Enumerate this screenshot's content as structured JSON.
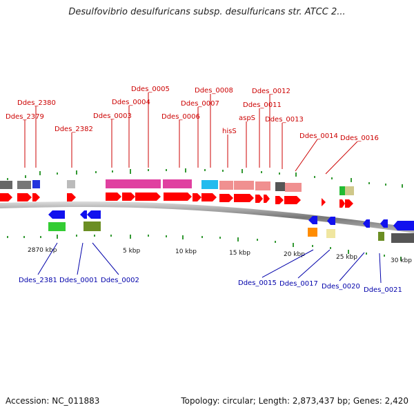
{
  "title": "Desulfovibrio desulfuricans subsp. desulfuricans str. ATCC 2...",
  "footer": {
    "accession": "Accession: NC_011883",
    "summary": "Topology: circular; Length: 2,873,437 bp; Genes: 2,420"
  },
  "colors": {
    "forward_gene": "#ff0000",
    "reverse_gene": "#0000ff",
    "forward_label": "#cc0000",
    "reverse_label": "#0000aa",
    "backbone": "#555555",
    "tick": "#339933"
  },
  "kbp_labels": [
    "2870 kbp",
    "5 kbp",
    "10 kbp",
    "15 kbp",
    "20 kbp",
    "25 kbp",
    "30 kbp"
  ],
  "forward_labels": [
    "Ddes_2380",
    "Ddes_2379",
    "Ddes_2382",
    "Ddes_0005",
    "Ddes_0004",
    "Ddes_0003",
    "Ddes_0008",
    "Ddes_0007",
    "Ddes_0006",
    "Ddes_0012",
    "Ddes_0011",
    "aspS",
    "hisS",
    "Ddes_0013",
    "Ddes_0014",
    "Ddes_0016"
  ],
  "reverse_labels": [
    "Ddes_2381",
    "Ddes_0001",
    "Ddes_0002",
    "Ddes_0015",
    "Ddes_0017",
    "Ddes_0020",
    "Ddes_0021"
  ],
  "icons": [
    "forward-gene-arrow-icon",
    "reverse-gene-arrow-icon",
    "cog-box-icon"
  ]
}
